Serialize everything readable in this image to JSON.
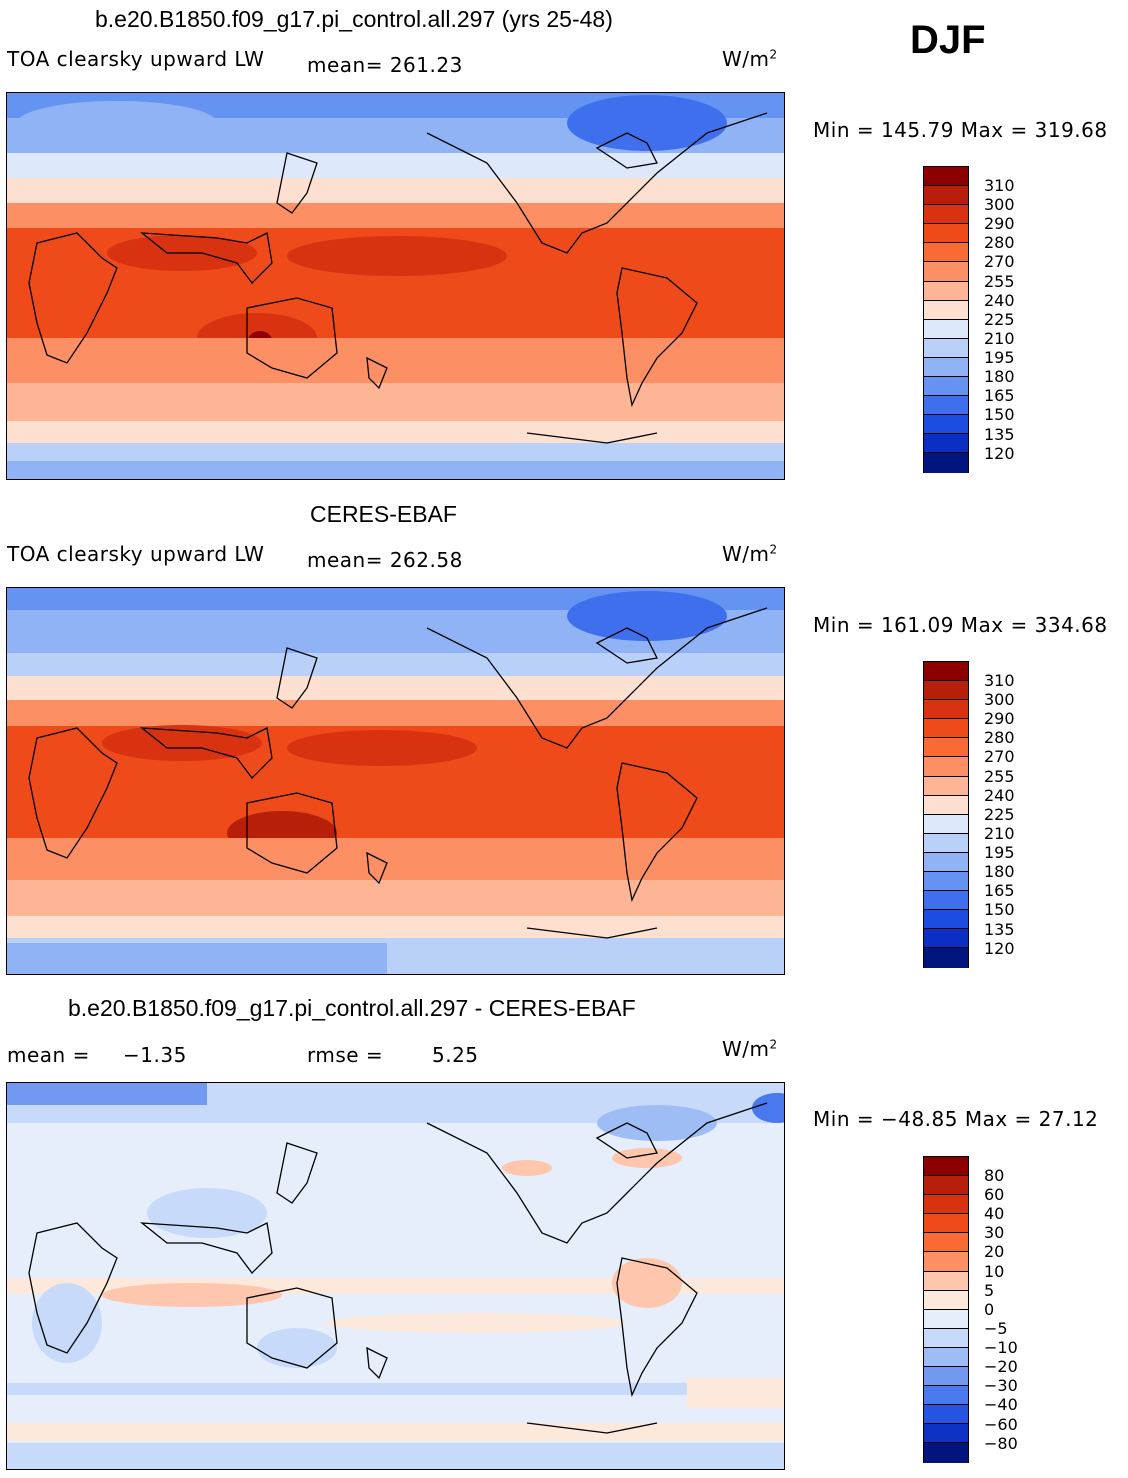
{
  "season": "DJF",
  "units_label": "W/m",
  "units_sup": "2",
  "panels": [
    {
      "title": "b.e20.B1850.f09_g17.pi_control.all.297 (yrs 25-48)",
      "variable": "TOA clearsky upward LW",
      "stat_text": "mean= 261.23",
      "minmax_text": "Min = 145.79 Max = 319.68",
      "colorbar_labels": [
        "310",
        "300",
        "290",
        "280",
        "270",
        "255",
        "240",
        "225",
        "210",
        "195",
        "180",
        "165",
        "150",
        "135",
        "120"
      ]
    },
    {
      "title": "CERES-EBAF",
      "variable": "TOA clearsky upward LW",
      "stat_text": "mean= 262.58",
      "minmax_text": "Min = 161.09 Max = 334.68",
      "colorbar_labels": [
        "310",
        "300",
        "290",
        "280",
        "270",
        "255",
        "240",
        "225",
        "210",
        "195",
        "180",
        "165",
        "150",
        "135",
        "120"
      ]
    },
    {
      "title": "b.e20.B1850.f09_g17.pi_control.all.297 - CERES-EBAF",
      "mean_label": "mean =",
      "mean_value": "−1.35",
      "rmse_label": "rmse =",
      "rmse_value": "5.25",
      "minmax_text": "Min = −48.85 Max =  27.12",
      "colorbar_labels": [
        "80",
        "60",
        "40",
        "30",
        "20",
        "10",
        "5",
        "0",
        "−5",
        "−10",
        "−20",
        "−30",
        "−40",
        "−60",
        "−80"
      ]
    }
  ],
  "colors": {
    "abs_scale": [
      "#8c0000",
      "#b81f0a",
      "#d83210",
      "#ef4a1a",
      "#fa6a35",
      "#fc8f64",
      "#fdb595",
      "#fde0cf",
      "#dde9fb",
      "#b9d1f8",
      "#8fb3f4",
      "#6593f2",
      "#3e70ee",
      "#1d4de0",
      "#0a2fc2",
      "#00157e"
    ],
    "diff_scale": [
      "#8c0000",
      "#b81f0a",
      "#d83210",
      "#ef4a1a",
      "#fa6a35",
      "#fc8f64",
      "#fdc6ad",
      "#fde8dc",
      "#e6eefc",
      "#c7daf9",
      "#9fbdf5",
      "#7299f1",
      "#4a78ee",
      "#2553e2",
      "#0d32c4",
      "#00157e"
    ]
  }
}
